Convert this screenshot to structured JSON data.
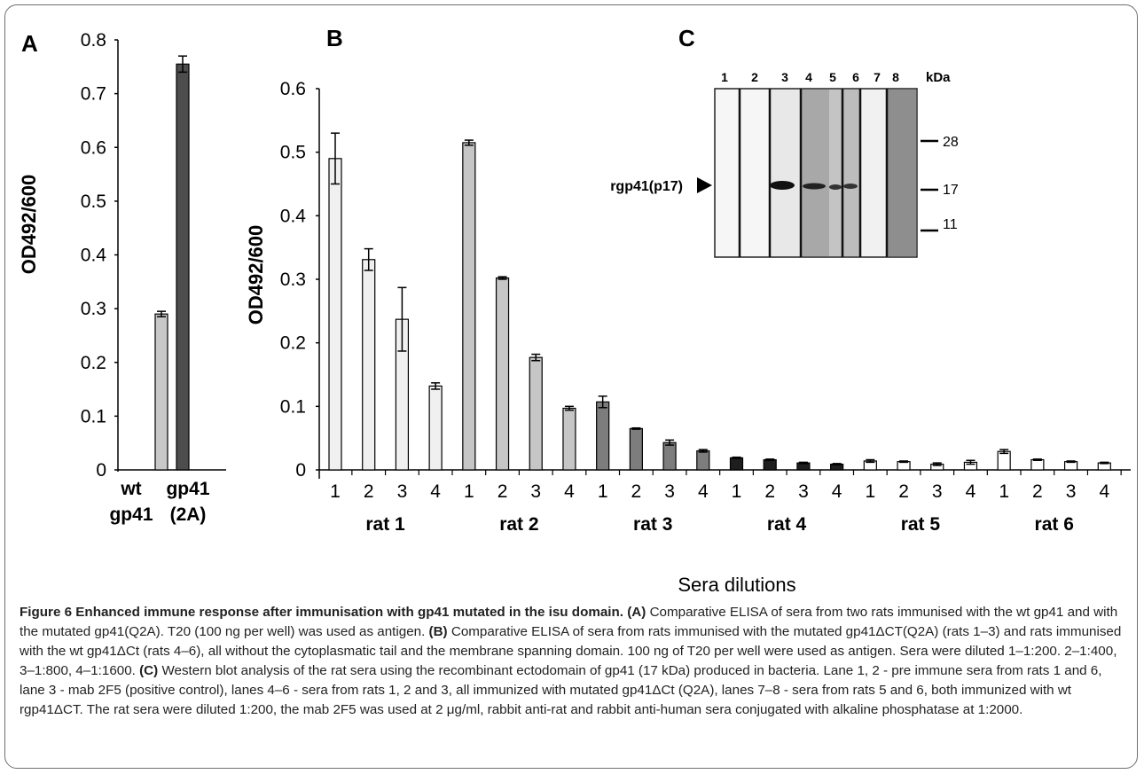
{
  "chart_data": [
    {
      "panel": "A",
      "type": "bar",
      "ylabel": "OD492/600",
      "ylim": [
        0,
        0.8
      ],
      "yticks": [
        "0",
        "0.1",
        "0.2",
        "0.3",
        "0.4",
        "0.5",
        "0.6",
        "0.7",
        "0.8"
      ],
      "categories": [
        [
          "wt",
          "gp41"
        ],
        [
          "gp41",
          "(2A)"
        ]
      ],
      "values": [
        0.29,
        0.755
      ],
      "errors": [
        0.005,
        0.015
      ],
      "colors": [
        "#c8c8c8",
        "#4d4d4d"
      ]
    },
    {
      "panel": "B",
      "type": "bar",
      "ylabel": "OD492/600",
      "xlabel": "Sera dilutions",
      "ylim": [
        0,
        0.6
      ],
      "yticks": [
        "0",
        "0.1",
        "0.2",
        "0.3",
        "0.4",
        "0.5",
        "0.6"
      ],
      "categories": [
        "1",
        "2",
        "3",
        "4",
        "1",
        "2",
        "3",
        "4",
        "1",
        "2",
        "3",
        "4",
        "1",
        "2",
        "3",
        "4",
        "1",
        "2",
        "3",
        "4",
        "1",
        "2",
        "3",
        "4"
      ],
      "groups": [
        "rat 1",
        "rat 2",
        "rat 3",
        "rat 4",
        "rat 5",
        "rat 6"
      ],
      "values": [
        0.49,
        0.331,
        0.237,
        0.132,
        0.515,
        0.302,
        0.177,
        0.097,
        0.107,
        0.065,
        0.043,
        0.03,
        0.019,
        0.016,
        0.011,
        0.009,
        0.014,
        0.013,
        0.009,
        0.012,
        0.029,
        0.016,
        0.013,
        0.011
      ],
      "errors": [
        0.04,
        0.017,
        0.05,
        0.005,
        0.004,
        0.002,
        0.005,
        0.003,
        0.009,
        0.001,
        0.004,
        0.002,
        0.001,
        0.001,
        0.001,
        0.001,
        0.002,
        0.001,
        0.002,
        0.003,
        0.003,
        0.001,
        0.001,
        0.001
      ],
      "fills": [
        "#f0f0f0",
        "#f0f0f0",
        "#f0f0f0",
        "#f0f0f0",
        "#c6c6c6",
        "#c6c6c6",
        "#c6c6c6",
        "#c6c6c6",
        "#7d7d7d",
        "#7d7d7d",
        "#7d7d7d",
        "#7d7d7d",
        "#1e1e1e",
        "#1e1e1e",
        "#1e1e1e",
        "#1e1e1e",
        "#ffffff",
        "#ffffff",
        "#ffffff",
        "#ffffff",
        "#ffffff",
        "#ffffff",
        "#ffffff",
        "#ffffff"
      ]
    }
  ],
  "panels": {
    "a_letter": "A",
    "b_letter": "B",
    "c_letter": "C"
  },
  "blot": {
    "lanes": [
      "1",
      "2",
      "3",
      "4",
      "5",
      "6",
      "7",
      "8"
    ],
    "kda_label": "kDa",
    "markers": [
      "28",
      "17",
      "11"
    ],
    "band_label": "rgp41(p17)"
  },
  "caption": {
    "title": "Figure 6 Enhanced immune response after immunisation with gp41 mutated in the isu domain.",
    "a_tag": "(A)",
    "a_text": " Comparative ELISA of sera from two rats immunised with the wt gp41 and with the mutated gp41(Q2A). T20 (100 ng per well) was used as antigen. ",
    "b_tag": "(B)",
    "b_text": " Comparative ELISA of sera from rats immunised with the mutated gp41ΔCT(Q2A) (rats 1–3) and rats immunised with the wt gp41ΔCt (rats 4–6), all without the cytoplasmatic tail and the membrane spanning domain. 100 ng of T20 per well were used as antigen. Sera were diluted 1–1:200. 2–1:400, 3–1:800, 4–1:1600. ",
    "c_tag": "(C)",
    "c_text": " Western blot analysis of the rat sera using the recombinant ectodomain of gp41 (17 kDa) produced in bacteria. Lane 1, 2 - pre immune sera from rats 1 and 6, lane 3 - mab 2F5 (positive control), lanes 4–6 - sera from rats 1, 2 and 3, all immunized with mutated gp41ΔCt (Q2A), lanes 7–8 - sera from rats 5 and 6, both immunized with wt rgp41ΔCT. The rat sera were diluted 1:200, the mab 2F5 was used at 2 μg/ml, rabbit anti-rat and rabbit anti-human sera conjugated with alkaline phosphatase at 1:2000."
  }
}
